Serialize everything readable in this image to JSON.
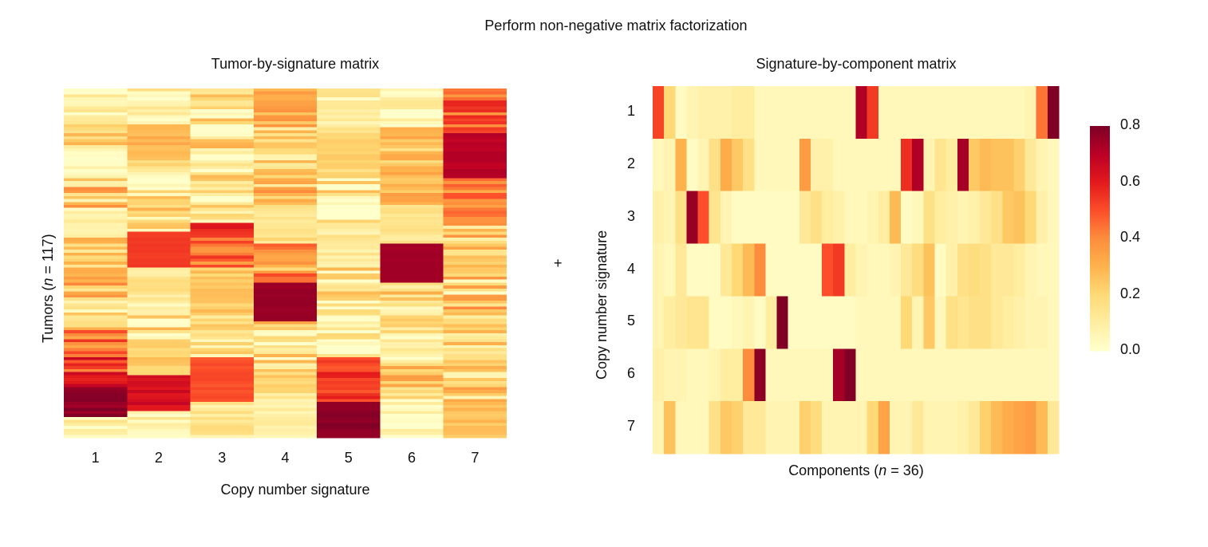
{
  "suptitle": "Perform non-negative matrix factorization",
  "plus_sign": "+",
  "colormap": {
    "name": "YlOrRd",
    "low": "#ffffcc",
    "high": "#800026"
  },
  "left": {
    "title": "Tumor-by-signature matrix",
    "xlabel": "Copy number signature",
    "ylabel_prefix": "Tumors (",
    "ylabel_n": "n",
    "ylabel_suffix": " = 117)",
    "xticks": [
      "1",
      "2",
      "3",
      "4",
      "5",
      "6",
      "7"
    ]
  },
  "right": {
    "title": "Signature-by-component matrix",
    "xlabel_prefix": "Components (",
    "xlabel_n": "n",
    "xlabel_suffix": " = 36)",
    "ylabel": "Copy number signature",
    "yticks": [
      "1",
      "2",
      "3",
      "4",
      "5",
      "6",
      "7"
    ]
  },
  "colorbar": {
    "ticks": [
      "0.8",
      "0.6",
      "0.4",
      "0.2",
      "0.0"
    ],
    "vmin": 0.0,
    "vmax": 0.8
  },
  "chart_data": [
    {
      "type": "heatmap",
      "title": "Tumor-by-signature matrix",
      "xlabel": "Copy number signature",
      "ylabel": "Tumors (n = 117)",
      "x_categories": [
        "1",
        "2",
        "3",
        "4",
        "5",
        "6",
        "7"
      ],
      "n_rows": 117,
      "vmin": 0.0,
      "vmax": 0.8,
      "column_segments": [
        [
          [
            0.06,
            0.1
          ],
          [
            0.2,
            0.12
          ],
          [
            0.04,
            0.04
          ],
          [
            0.24,
            0.2
          ],
          [
            0.08,
            0.08
          ],
          [
            0.22,
            0.12
          ],
          [
            0.3,
            0.18
          ],
          [
            0.14,
            0.12
          ],
          [
            0.42,
            0.14
          ],
          [
            0.56,
            0.16
          ],
          [
            0.78,
            0.04
          ],
          [
            0.1,
            0.1
          ]
        ],
        [
          [
            0.06,
            0.14
          ],
          [
            0.3,
            0.04
          ],
          [
            0.08,
            0.18
          ],
          [
            0.18,
            0.18
          ],
          [
            0.54,
            0.01
          ],
          [
            0.12,
            0.08
          ],
          [
            0.1,
            0.2
          ],
          [
            0.22,
            0.06
          ],
          [
            0.64,
            0.04
          ],
          [
            0.08,
            0.08
          ]
        ],
        [
          [
            0.1,
            0.2
          ],
          [
            0.14,
            0.22
          ],
          [
            0.1,
            0.16
          ],
          [
            0.48,
            0.14
          ],
          [
            0.24,
            0.06
          ],
          [
            0.14,
            0.12
          ],
          [
            0.5,
            0.02
          ],
          [
            0.12,
            0.08
          ]
        ],
        [
          [
            0.32,
            0.08
          ],
          [
            0.18,
            0.12
          ],
          [
            0.26,
            0.16
          ],
          [
            0.16,
            0.06
          ],
          [
            0.34,
            0.18
          ],
          [
            0.76,
            0.01
          ],
          [
            0.12,
            0.22
          ],
          [
            0.18,
            0.12
          ],
          [
            0.08,
            0.05
          ]
        ],
        [
          [
            0.08,
            0.08
          ],
          [
            0.2,
            0.04
          ],
          [
            0.04,
            0.24
          ],
          [
            0.12,
            0.08
          ],
          [
            0.06,
            0.28
          ],
          [
            0.1,
            0.14
          ],
          [
            0.54,
            0.06
          ],
          [
            0.78,
            0.02
          ]
        ],
        [
          [
            0.02,
            0.18
          ],
          [
            0.24,
            0.1
          ],
          [
            0.3,
            0.08
          ],
          [
            0.12,
            0.06
          ],
          [
            0.74,
            0.01
          ],
          [
            0.16,
            0.16
          ],
          [
            0.06,
            0.18
          ],
          [
            0.22,
            0.14
          ],
          [
            0.02,
            0.09
          ]
        ],
        [
          [
            0.48,
            0.12
          ],
          [
            0.7,
            0.02
          ],
          [
            0.4,
            0.1
          ],
          [
            0.24,
            0.16
          ],
          [
            0.2,
            0.22
          ],
          [
            0.22,
            0.16
          ],
          [
            0.2,
            0.17
          ],
          [
            0.26,
            0.05
          ]
        ]
      ]
    },
    {
      "type": "heatmap",
      "title": "Signature-by-component matrix",
      "xlabel": "Components (n = 36)",
      "ylabel": "Copy number signature",
      "y_categories": [
        "1",
        "2",
        "3",
        "4",
        "5",
        "6",
        "7"
      ],
      "n_columns": 36,
      "vmin": 0.0,
      "vmax": 0.8,
      "values": [
        [
          0.52,
          0.2,
          0.02,
          0.06,
          0.08,
          0.08,
          0.08,
          0.1,
          0.1,
          0.04,
          0.04,
          0.04,
          0.04,
          0.04,
          0.04,
          0.04,
          0.04,
          0.04,
          0.72,
          0.54,
          0.04,
          0.04,
          0.04,
          0.04,
          0.04,
          0.04,
          0.04,
          0.04,
          0.04,
          0.04,
          0.04,
          0.04,
          0.04,
          0.06,
          0.44,
          0.8
        ],
        [
          0.04,
          0.06,
          0.3,
          0.02,
          0.06,
          0.16,
          0.32,
          0.24,
          0.16,
          0.04,
          0.04,
          0.04,
          0.04,
          0.36,
          0.08,
          0.08,
          0.04,
          0.04,
          0.04,
          0.04,
          0.04,
          0.04,
          0.56,
          0.72,
          0.06,
          0.14,
          0.1,
          0.74,
          0.24,
          0.28,
          0.26,
          0.26,
          0.22,
          0.12,
          0.06,
          0.04
        ],
        [
          0.08,
          0.06,
          0.16,
          0.76,
          0.5,
          0.14,
          0.06,
          0.02,
          0.02,
          0.02,
          0.02,
          0.02,
          0.02,
          0.12,
          0.16,
          0.1,
          0.08,
          0.04,
          0.04,
          0.06,
          0.1,
          0.28,
          0.02,
          0.04,
          0.16,
          0.1,
          0.08,
          0.06,
          0.08,
          0.12,
          0.16,
          0.24,
          0.26,
          0.2,
          0.08,
          0.04
        ],
        [
          0.06,
          0.04,
          0.12,
          0.02,
          0.02,
          0.02,
          0.12,
          0.2,
          0.28,
          0.4,
          0.02,
          0.02,
          0.02,
          0.02,
          0.02,
          0.5,
          0.54,
          0.1,
          0.06,
          0.04,
          0.04,
          0.06,
          0.12,
          0.18,
          0.26,
          0.02,
          0.08,
          0.16,
          0.18,
          0.16,
          0.12,
          0.12,
          0.1,
          0.06,
          0.04,
          0.04
        ],
        [
          0.06,
          0.1,
          0.12,
          0.14,
          0.14,
          0.02,
          0.02,
          0.04,
          0.06,
          0.02,
          0.1,
          0.8,
          0.02,
          0.02,
          0.02,
          0.02,
          0.02,
          0.02,
          0.04,
          0.04,
          0.04,
          0.04,
          0.2,
          0.06,
          0.24,
          0.04,
          0.16,
          0.14,
          0.16,
          0.16,
          0.12,
          0.1,
          0.08,
          0.06,
          0.06,
          0.04
        ],
        [
          0.08,
          0.06,
          0.06,
          0.04,
          0.04,
          0.06,
          0.1,
          0.1,
          0.4,
          0.78,
          0.04,
          0.04,
          0.04,
          0.04,
          0.04,
          0.04,
          0.74,
          0.8,
          0.04,
          0.04,
          0.04,
          0.04,
          0.04,
          0.04,
          0.04,
          0.04,
          0.04,
          0.04,
          0.04,
          0.04,
          0.04,
          0.04,
          0.04,
          0.04,
          0.04,
          0.04
        ],
        [
          0.06,
          0.26,
          0.04,
          0.04,
          0.04,
          0.16,
          0.24,
          0.22,
          0.12,
          0.12,
          0.06,
          0.06,
          0.06,
          0.22,
          0.18,
          0.06,
          0.06,
          0.06,
          0.06,
          0.2,
          0.34,
          0.06,
          0.06,
          0.12,
          0.06,
          0.06,
          0.06,
          0.08,
          0.12,
          0.22,
          0.28,
          0.32,
          0.34,
          0.36,
          0.28,
          0.12
        ]
      ]
    }
  ]
}
